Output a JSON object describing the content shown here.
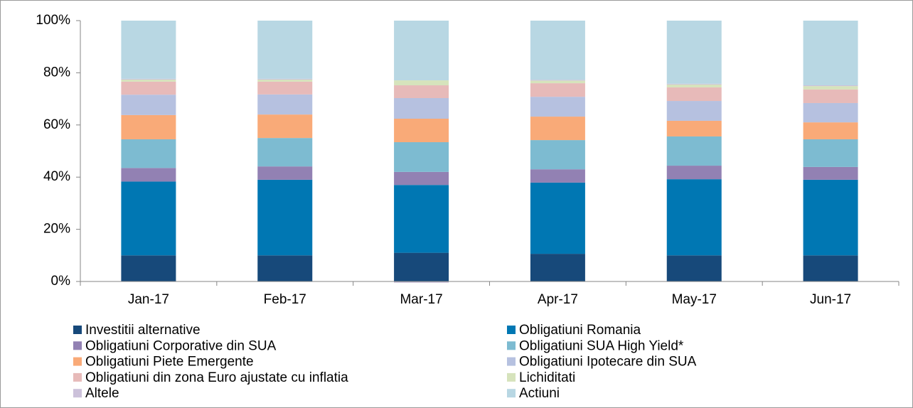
{
  "chart_data": {
    "type": "stacked_bar",
    "categories": [
      "Jan-17",
      "Feb-17",
      "Mar-17",
      "Apr-17",
      "May-17",
      "Jun-17"
    ],
    "series": [
      {
        "name": "Investitii alternative",
        "color": "#17497a",
        "values": [
          10,
          10,
          11,
          10.6,
          10,
          10
        ]
      },
      {
        "name": "Obligatiuni Romania",
        "color": "#0077b3",
        "values": [
          28.3,
          29,
          26,
          27.3,
          29.2,
          29
        ]
      },
      {
        "name": "Obligatiuni Corporative din SUA",
        "color": "#9281b3",
        "values": [
          5.2,
          5.1,
          5,
          5.1,
          5.2,
          4.9
        ]
      },
      {
        "name": "Obligatiuni SUA High Yield*",
        "color": "#7dbbd1",
        "values": [
          11,
          10.9,
          11.4,
          11.2,
          11.2,
          10.6
        ]
      },
      {
        "name": "Obligatiuni Piete Emergente",
        "color": "#f9aa78",
        "values": [
          9.3,
          9,
          9,
          9,
          6,
          6.5
        ]
      },
      {
        "name": "Obligatiuni Ipotecare din SUA",
        "color": "#b6c1e0",
        "values": [
          7.8,
          7.7,
          7.9,
          7.6,
          7.6,
          7.4
        ]
      },
      {
        "name": "Obligatiuni din zona Euro ajustate cu inflatia",
        "color": "#e7bab9",
        "values": [
          5,
          4.9,
          4.9,
          5.2,
          5.2,
          5.2
        ]
      },
      {
        "name": "Lichiditati",
        "color": "#d6e3bc",
        "values": [
          0.8,
          0.8,
          1.9,
          1,
          1.1,
          1.3
        ]
      },
      {
        "name": "Altele",
        "color": "#ccc1da",
        "values": [
          0.3,
          0.3,
          -0.5,
          0.3,
          0.3,
          0.3
        ]
      },
      {
        "name": "Actiuni",
        "color": "#b8d7e3",
        "values": [
          22.3,
          22.3,
          22.9,
          22.7,
          24.2,
          24.8
        ]
      }
    ],
    "ylim": [
      0,
      100
    ],
    "yticks": [
      {
        "value": 0,
        "label": "0%"
      },
      {
        "value": 20,
        "label": "20%"
      },
      {
        "value": 40,
        "label": "40%"
      },
      {
        "value": 60,
        "label": "60%"
      },
      {
        "value": 80,
        "label": "80%"
      },
      {
        "value": 100,
        "label": "100%"
      }
    ],
    "grid": false,
    "legend": "bottom"
  }
}
